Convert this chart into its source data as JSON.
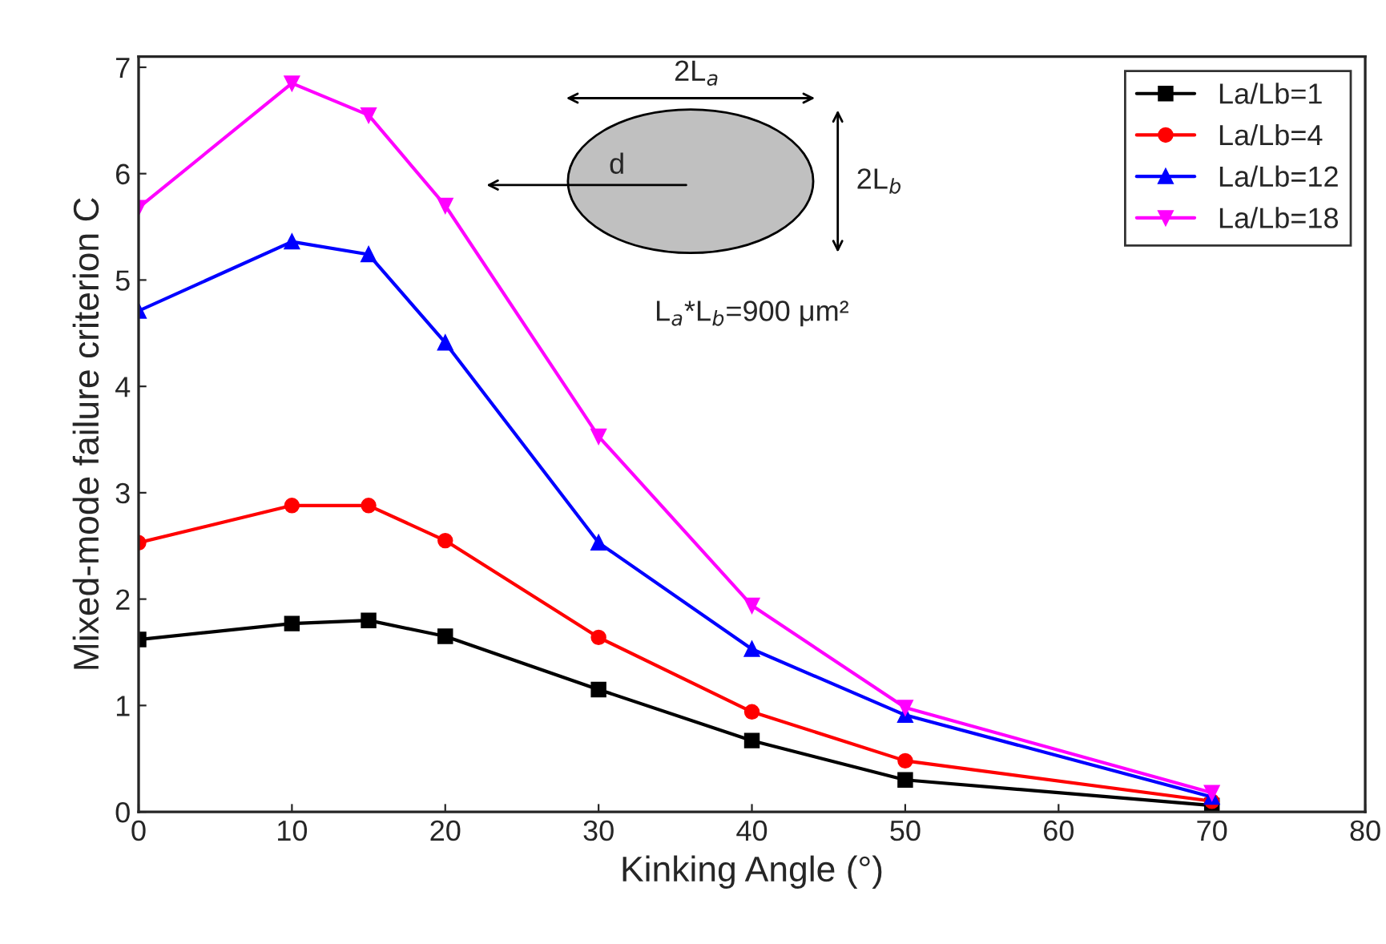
{
  "chart_data": {
    "type": "line",
    "xlabel": "Kinking Angle (°)",
    "ylabel": "Mixed-mode failure criterion C",
    "x": [
      0,
      10,
      15,
      20,
      30,
      40,
      50,
      70
    ],
    "series": [
      {
        "name": "La/Lb=1",
        "color": "#000000",
        "marker": "square",
        "values": [
          1.62,
          1.77,
          1.8,
          1.65,
          1.15,
          0.67,
          0.3,
          0.06
        ]
      },
      {
        "name": "La/Lb=4",
        "color": "#ff0000",
        "marker": "circle",
        "values": [
          2.53,
          2.88,
          2.88,
          2.55,
          1.64,
          0.94,
          0.48,
          0.1
        ]
      },
      {
        "name": "La/Lb=12",
        "color": "#0000ff",
        "marker": "triangle",
        "values": [
          4.71,
          5.36,
          5.24,
          4.41,
          2.53,
          1.53,
          0.91,
          0.14
        ]
      },
      {
        "name": "La/Lb=18",
        "color": "#ff00ff",
        "marker": "triangle_down",
        "values": [
          5.68,
          6.85,
          6.55,
          5.7,
          3.53,
          1.94,
          0.98,
          0.18
        ]
      }
    ],
    "xlim": [
      0,
      80
    ],
    "xticks": [
      0,
      10,
      20,
      30,
      40,
      50,
      60,
      70,
      80
    ],
    "ylim": [
      0,
      7.1
    ],
    "yticks": [
      0,
      1,
      2,
      3,
      4,
      5,
      6,
      7
    ],
    "grid": false,
    "legend": "top right",
    "line_style": "solid",
    "annotations": [
      "2L$_{a}$",
      "2L$_{b}$",
      "d",
      "L$_{a}$*L$_{b}$=900 μm²"
    ]
  }
}
